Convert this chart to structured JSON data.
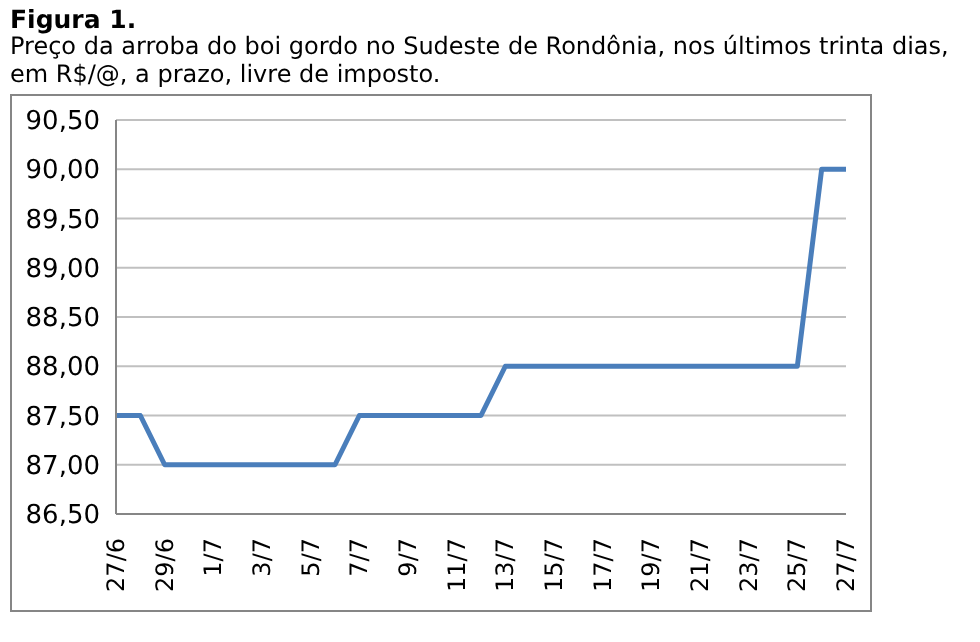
{
  "chart_data": {
    "type": "line",
    "title": "Figura 1.",
    "subtitle": "Preço da arroba do boi gordo no Sudeste de Rondônia, nos últimos trinta dias, em R$/@, a prazo, livre de imposto.",
    "categories": [
      "27/6",
      null,
      "29/6",
      null,
      "1/7",
      null,
      "3/7",
      null,
      "5/7",
      null,
      "7/7",
      null,
      "9/7",
      null,
      "11/7",
      null,
      "13/7",
      null,
      "15/7",
      null,
      "17/7",
      null,
      "19/7",
      null,
      "21/7",
      null,
      "23/7",
      null,
      "25/7",
      null,
      "27/7"
    ],
    "series": [
      {
        "color": "#4a7ebb",
        "values": [
          87.5,
          87.5,
          87.0,
          87.0,
          87.0,
          87.0,
          87.0,
          87.0,
          87.0,
          87.0,
          87.5,
          87.5,
          87.5,
          87.5,
          87.5,
          87.5,
          88.0,
          88.0,
          88.0,
          88.0,
          88.0,
          88.0,
          88.0,
          88.0,
          88.0,
          88.0,
          88.0,
          88.0,
          88.0,
          90.0,
          90.0
        ]
      }
    ],
    "ylim": [
      86.5,
      90.5
    ],
    "yticks": [
      {
        "value": 86.5,
        "label": "86,50"
      },
      {
        "value": 87,
        "label": "87,00"
      },
      {
        "value": 87.5,
        "label": "87,50"
      },
      {
        "value": 88,
        "label": "88,00"
      },
      {
        "value": 88.5,
        "label": "88,50"
      },
      {
        "value": 89,
        "label": "89,00"
      },
      {
        "value": 89.5,
        "label": "89,50"
      },
      {
        "value": 90,
        "label": "90,00"
      },
      {
        "value": 90.5,
        "label": "90,50"
      }
    ],
    "grid": "y",
    "legend": false,
    "marker": "none",
    "line_style": "solid"
  }
}
